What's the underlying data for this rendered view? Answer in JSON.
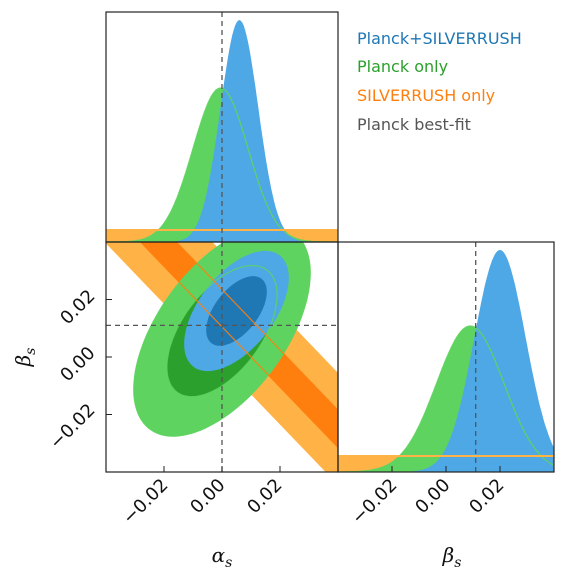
{
  "chart_data": {
    "type": "triangle",
    "parameters": [
      {
        "name": "alpha_s",
        "label_main": "α",
        "label_sub": "s",
        "range": [
          -0.04,
          0.04
        ],
        "ticks": [
          "−0.02",
          "0.00",
          "0.02"
        ],
        "tick_values": [
          -0.02,
          0.0,
          0.02
        ]
      },
      {
        "name": "beta_s",
        "label_main": "β",
        "label_sub": "s",
        "range": [
          -0.04,
          0.04
        ],
        "ticks": [
          "−0.02",
          "0.00",
          "0.02"
        ],
        "tick_values": [
          -0.02,
          0.0,
          0.02
        ]
      }
    ],
    "colors": {
      "planck_silverrush_light": "#4ea8e6",
      "planck_silverrush_dark": "#1f77b4",
      "planck_only_light": "#5fd35f",
      "planck_only_dark": "#2ca02c",
      "silverrush_only_light": "#ffb347",
      "silverrush_only_dark": "#ff7f0e",
      "best_fit": "#555555"
    },
    "best_fit": {
      "alpha_s": 0.0,
      "beta_s": 0.011
    },
    "series": [
      {
        "name": "Planck+SILVERRUSH",
        "color_key": "planck_silverrush",
        "alpha_1d": {
          "mean": 0.006,
          "sigma": 0.0065
        },
        "beta_1d": {
          "mean": 0.02,
          "sigma": 0.0095
        },
        "ellipse_2d": {
          "center": [
            0.005,
            0.016
          ],
          "sigma": [
            0.0095,
            0.011
          ],
          "corr": 0.55
        }
      },
      {
        "name": "Planck only",
        "color_key": "planck_only",
        "alpha_1d": {
          "mean": -0.0005,
          "sigma": 0.0095
        },
        "beta_1d": {
          "mean": 0.009,
          "sigma": 0.0125
        },
        "ellipse_2d": {
          "center": [
            0.0,
            0.009
          ],
          "sigma": [
            0.0125,
            0.015
          ],
          "corr": 0.55
        }
      },
      {
        "name": "SILVERRUSH only",
        "color_key": "silverrush_only",
        "alpha_1d": {
          "flat": 0.04
        },
        "beta_1d": {
          "flat": 0.04
        },
        "band_2d": {
          "slope": -1.05,
          "intercept": 0.017,
          "half_width_1sigma": 0.0065,
          "half_width_2sigma": 0.0195
        }
      }
    ],
    "legend": [
      {
        "label": "Planck+SILVERRUSH",
        "color": "#1f77b4"
      },
      {
        "label": "Planck only",
        "color": "#2ca02c"
      },
      {
        "label": "SILVERRUSH only",
        "color": "#ff7f0e"
      },
      {
        "label": "Planck best-fit",
        "color": "#555555"
      }
    ],
    "legend_location": "top-right"
  }
}
